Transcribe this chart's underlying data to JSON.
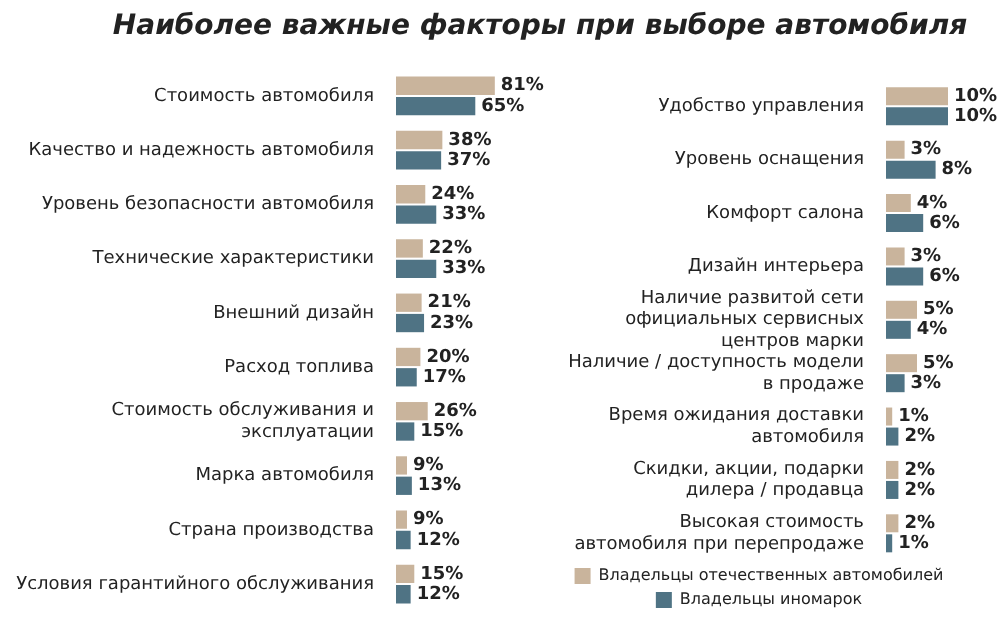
{
  "chart_data": [
    {
      "type": "bar",
      "orientation": "horizontal",
      "title": "Наиболее важные факторы при выборе автомобиля",
      "categories": [
        "Стоимость автомобиля",
        "Качество и надежность автомобиля",
        "Уровень безопасности автомобиля",
        "Технические характеристики",
        "Внешний дизайн",
        "Расход топлива",
        "Стоимость обслуживания и эксплуатации",
        "Марка автомобиля",
        "Страна производства",
        "Условия гарантийного обслуживания"
      ],
      "tick_labels": "y",
      "grid": false,
      "legend": false,
      "series": [
        {
          "color": "#c9b49c",
          "values": [
            81,
            38,
            24,
            22,
            21,
            20,
            26,
            9,
            9,
            15
          ],
          "value_labels": [
            "81%",
            "38%",
            "24%",
            "22%",
            "21%",
            "20%",
            "26%",
            "9%",
            "9%",
            "15%"
          ]
        },
        {
          "color": "#4f7384",
          "values": [
            65,
            37,
            33,
            33,
            23,
            17,
            15,
            13,
            12,
            12
          ],
          "value_labels": [
            "65%",
            "37%",
            "33%",
            "33%",
            "23%",
            "17%",
            "15%",
            "13%",
            "12%",
            "12%"
          ]
        }
      ]
    },
    {
      "type": "bar",
      "orientation": "horizontal",
      "categories": [
        "Удобство управления",
        "Уровень оснащения",
        "Комфорт салона",
        "Дизайн интерьера",
        "Наличие развитой сети официальных сервисных центров марки",
        "Наличие / доступность модели в продаже",
        "Время ожидания доставки автомобиля",
        "Скидки, акции, подарки дилера / продавца",
        "Высокая стоимость автомобиля при перепродаже"
      ],
      "tick_labels": "y",
      "grid": false,
      "legend": "bottom",
      "series": [
        {
          "name": "Владельцы отечественных автомобилей",
          "color": "#c9b49c",
          "values": [
            10,
            3,
            4,
            3,
            5,
            5,
            1,
            2,
            2
          ],
          "value_labels": [
            "10%",
            "3%",
            "4%",
            "3%",
            "5%",
            "5%",
            "1%",
            "2%",
            "2%"
          ]
        },
        {
          "name": "Владельцы иномарок",
          "color": "#4f7384",
          "values": [
            10,
            8,
            6,
            6,
            4,
            3,
            2,
            2,
            1
          ],
          "value_labels": [
            "10%",
            "8%",
            "6%",
            "6%",
            "4%",
            "3%",
            "2%",
            "2%",
            "1%"
          ]
        }
      ]
    }
  ]
}
